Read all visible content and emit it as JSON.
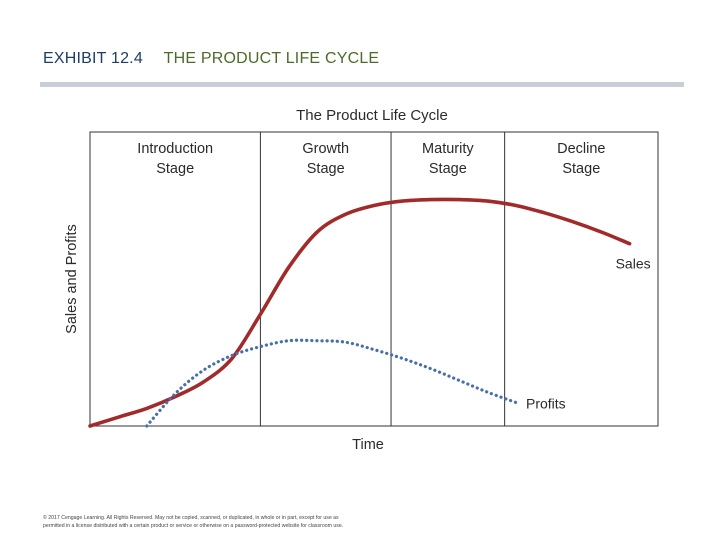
{
  "header": {
    "exhibit": "EXHIBIT 12.4",
    "subject": "THE PRODUCT LIFE CYCLE"
  },
  "colors": {
    "header_exhibit": "#1f3d64",
    "header_subject": "#4e6a2b",
    "sales_line": "#a12a2a",
    "profits_line": "#4a6ea9",
    "frame": "#333333",
    "rule": "#c9cfd6"
  },
  "chart_data": {
    "type": "line",
    "title": "The Product Life Cycle",
    "xlabel": "Time",
    "ylabel": "Sales and Profits",
    "xlim": [
      0,
      100
    ],
    "ylim": [
      0,
      100
    ],
    "grid": false,
    "legend": "inline-labels",
    "stages": [
      {
        "line1": "Introduction",
        "line2": "Stage",
        "start": 0,
        "end": 30
      },
      {
        "line1": "Growth",
        "line2": "Stage",
        "start": 30,
        "end": 53
      },
      {
        "line1": "Maturity",
        "line2": "Stage",
        "start": 53,
        "end": 73
      },
      {
        "line1": "Decline",
        "line2": "Stage",
        "start": 73,
        "end": 100
      }
    ],
    "series": [
      {
        "name": "Sales",
        "style": "solid",
        "x": [
          0,
          5,
          10,
          15,
          20,
          25,
          30,
          35,
          40,
          45,
          50,
          55,
          60,
          65,
          70,
          75,
          80,
          85,
          90,
          95
        ],
        "y": [
          0,
          3,
          6,
          10,
          15,
          23,
          38,
          54,
          66,
          72,
          75,
          76.5,
          77,
          77,
          76.5,
          75,
          72.5,
          69.5,
          66,
          62
        ]
      },
      {
        "name": "Profits",
        "style": "dotted",
        "x": [
          10,
          15,
          20,
          25,
          30,
          35,
          40,
          45,
          50,
          55,
          60,
          65,
          70,
          75
        ],
        "y": [
          0,
          11,
          19,
          24,
          27,
          29,
          29,
          28.5,
          26,
          23,
          19.5,
          15.5,
          11.5,
          8
        ]
      }
    ]
  },
  "footer": {
    "line1": "© 2017 Cengage Learning. All Rights Reserved. May not be copied, scanned, or duplicated, in whole or in part, except for use as",
    "line2": "permitted in a license distributed with a certain product or service or otherwise on a password-protected website for classroom use."
  }
}
